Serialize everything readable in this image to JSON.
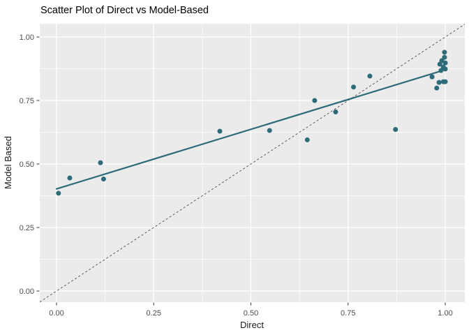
{
  "chart_data": {
    "type": "scatter",
    "title": "Scatter Plot of Direct vs Model-Based",
    "xlabel": "Direct",
    "ylabel": "Model Based",
    "xlim": [
      -0.05,
      1.05
    ],
    "ylim": [
      -0.05,
      1.05
    ],
    "grid": true,
    "legend_position": "none",
    "x_ticks": {
      "values": [
        0.0,
        0.25,
        0.5,
        0.75,
        1.0
      ],
      "labels": [
        "0.00",
        "0.25",
        "0.50",
        "0.75",
        "1.00"
      ]
    },
    "y_ticks": {
      "values": [
        0.0,
        0.25,
        0.5,
        0.75,
        1.0
      ],
      "labels": [
        "0.00",
        "0.25",
        "0.50",
        "0.75",
        "1.00"
      ]
    },
    "x_minor_ticks": [
      0.125,
      0.375,
      0.625,
      0.875
    ],
    "y_minor_ticks": [
      0.125,
      0.375,
      0.625,
      0.875
    ],
    "points": [
      [
        0.005,
        0.385
      ],
      [
        0.034,
        0.445
      ],
      [
        0.113,
        0.505
      ],
      [
        0.121,
        0.441
      ],
      [
        0.42,
        0.629
      ],
      [
        0.548,
        0.632
      ],
      [
        0.645,
        0.595
      ],
      [
        0.664,
        0.75
      ],
      [
        0.718,
        0.705
      ],
      [
        0.764,
        0.803
      ],
      [
        0.806,
        0.846
      ],
      [
        0.872,
        0.636
      ],
      [
        0.966,
        0.843
      ],
      [
        0.978,
        0.799
      ],
      [
        0.984,
        0.821
      ],
      [
        0.995,
        0.824
      ],
      [
        1.0,
        0.824
      ],
      [
        0.989,
        0.868
      ],
      [
        0.995,
        0.882
      ],
      [
        1.0,
        0.874
      ],
      [
        0.986,
        0.893
      ],
      [
        1.0,
        0.898
      ],
      [
        0.991,
        0.907
      ],
      [
        0.998,
        0.92
      ],
      [
        0.998,
        0.94
      ]
    ],
    "trend_line": {
      "x1": 0.0,
      "y1": 0.402,
      "x2": 0.993,
      "y2": 0.868
    },
    "identity_line": {
      "from": [
        0,
        0
      ],
      "to": [
        1,
        1
      ],
      "style": "dashed"
    },
    "colors": {
      "point": "#2d6b78",
      "trend": "#2d6b78",
      "identity": "#4d4d4d",
      "panel_bg": "#ebebeb",
      "grid": "#ffffff",
      "tick_label": "#4d4d4d",
      "tick_mark": "#333333",
      "title": "#000000",
      "axis_title": "#1a1a1a"
    }
  }
}
